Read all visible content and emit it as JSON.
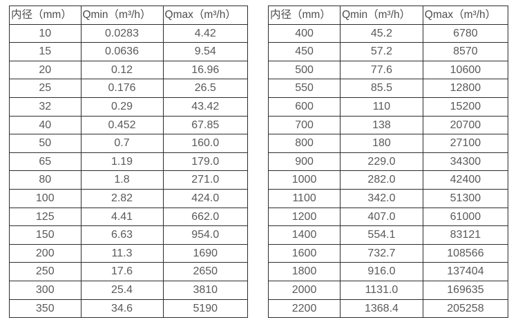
{
  "colors": {
    "background": "#ffffff",
    "grid_border": "#2b2b2b",
    "header_text": "#4d4d4d",
    "cell_text": "#595959"
  },
  "tables": [
    {
      "name": "flow-spec-table-small-diameters",
      "headers": [
        "内径（mm）",
        "Qmin（m³/h）",
        "Qmax（m³/h）"
      ],
      "rows": [
        [
          "10",
          "0.0283",
          "4.42"
        ],
        [
          "15",
          "0.0636",
          "9.54"
        ],
        [
          "20",
          "0.12",
          "16.96"
        ],
        [
          "25",
          "0.176",
          "26.5"
        ],
        [
          "32",
          "0.29",
          "43.42"
        ],
        [
          "40",
          "0.452",
          "67.85"
        ],
        [
          "50",
          "0.7",
          "160.0"
        ],
        [
          "65",
          "1.19",
          "179.0"
        ],
        [
          "80",
          "1.8",
          "271.0"
        ],
        [
          "100",
          "2.82",
          "424.0"
        ],
        [
          "125",
          "4.41",
          "662.0"
        ],
        [
          "150",
          "6.63",
          "954.0"
        ],
        [
          "200",
          "11.3",
          "1690"
        ],
        [
          "250",
          "17.6",
          "2650"
        ],
        [
          "300",
          "25.4",
          "3810"
        ],
        [
          "350",
          "34.6",
          "5190"
        ]
      ]
    },
    {
      "name": "flow-spec-table-large-diameters",
      "headers": [
        "内径（mm）",
        "Qmin（m³/h）",
        "Qmax（m³/h）"
      ],
      "rows": [
        [
          "400",
          "45.2",
          "6780"
        ],
        [
          "450",
          "57.2",
          "8570"
        ],
        [
          "500",
          "77.6",
          "10600"
        ],
        [
          "550",
          "85.5",
          "12800"
        ],
        [
          "600",
          "110",
          "15200"
        ],
        [
          "700",
          "138",
          "20700"
        ],
        [
          "800",
          "180",
          "27100"
        ],
        [
          "900",
          "229.0",
          "34300"
        ],
        [
          "1000",
          "282.0",
          "42400"
        ],
        [
          "1100",
          "342.0",
          "51300"
        ],
        [
          "1200",
          "407.0",
          "61000"
        ],
        [
          "1400",
          "554.1",
          "83121"
        ],
        [
          "1600",
          "732.7",
          "108566"
        ],
        [
          "1800",
          "916.0",
          "137404"
        ],
        [
          "2000",
          "1131.0",
          "169635"
        ],
        [
          "2200",
          "1368.4",
          "205258"
        ]
      ]
    }
  ]
}
